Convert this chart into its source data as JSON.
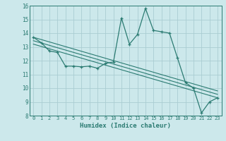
{
  "xlabel": "Humidex (Indice chaleur)",
  "ylabel": "",
  "xlim": [
    -0.5,
    23.5
  ],
  "ylim": [
    8,
    16
  ],
  "xticks": [
    0,
    1,
    2,
    3,
    4,
    5,
    6,
    7,
    8,
    9,
    10,
    11,
    12,
    13,
    14,
    15,
    16,
    17,
    18,
    19,
    20,
    21,
    22,
    23
  ],
  "yticks": [
    8,
    9,
    10,
    11,
    12,
    13,
    14,
    15,
    16
  ],
  "bg_color": "#cce8eb",
  "line_color": "#2b7b72",
  "grid_color": "#aacdd2",
  "series": [
    [
      0,
      13.7
    ],
    [
      1,
      13.3
    ],
    [
      2,
      12.7
    ],
    [
      3,
      12.6
    ],
    [
      4,
      11.6
    ],
    [
      5,
      11.6
    ],
    [
      6,
      11.55
    ],
    [
      7,
      11.6
    ],
    [
      8,
      11.45
    ],
    [
      9,
      11.8
    ],
    [
      10,
      11.9
    ],
    [
      11,
      15.1
    ],
    [
      12,
      13.2
    ],
    [
      13,
      13.9
    ],
    [
      14,
      15.8
    ],
    [
      15,
      14.2
    ],
    [
      16,
      14.1
    ],
    [
      17,
      14.0
    ],
    [
      18,
      12.2
    ],
    [
      19,
      10.4
    ],
    [
      20,
      10.0
    ],
    [
      21,
      8.2
    ],
    [
      22,
      9.0
    ],
    [
      23,
      9.3
    ]
  ],
  "trend_lines": [
    {
      "x0": 0,
      "y0": 13.7,
      "x1": 23,
      "y1": 9.8
    },
    {
      "x0": 0,
      "y0": 13.45,
      "x1": 23,
      "y1": 9.55
    },
    {
      "x0": 0,
      "y0": 13.2,
      "x1": 23,
      "y1": 9.3
    }
  ]
}
